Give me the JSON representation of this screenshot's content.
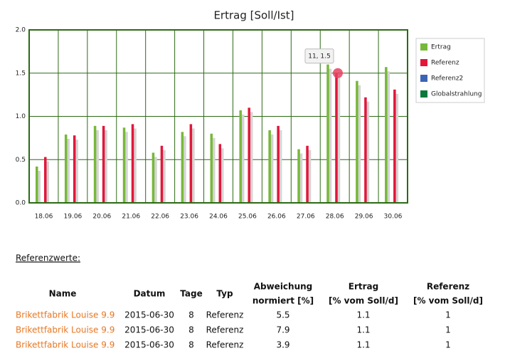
{
  "chart_data": {
    "type": "bar",
    "title": "Ertrag [Soll/Ist]",
    "categories": [
      "18.06",
      "19.06",
      "20.06",
      "21.06",
      "22.06",
      "23.06",
      "24.06",
      "25.06",
      "26.06",
      "27.06",
      "28.06",
      "29.06",
      "30.06"
    ],
    "series": [
      {
        "name": "Ertrag",
        "color": "#77b83a",
        "values": [
          0.42,
          0.79,
          0.89,
          0.87,
          0.58,
          0.82,
          0.8,
          1.07,
          0.84,
          0.62,
          1.6,
          1.41,
          1.57
        ]
      },
      {
        "name": "Referenz",
        "color": "#e3163a",
        "values": [
          0.53,
          0.78,
          0.89,
          0.91,
          0.66,
          0.91,
          0.68,
          1.1,
          0.89,
          0.66,
          1.5,
          1.22,
          1.31
        ]
      },
      {
        "name": "Referenz2",
        "color": "#3c64b4",
        "values": [
          null,
          null,
          null,
          null,
          null,
          null,
          null,
          null,
          null,
          null,
          null,
          null,
          null
        ]
      },
      {
        "name": "Globalstrahlung",
        "color": "#0a7a3c",
        "values": [
          null,
          null,
          null,
          null,
          null,
          null,
          null,
          null,
          null,
          null,
          null,
          null,
          null
        ]
      }
    ],
    "ylim": [
      0,
      2
    ],
    "yticks": [
      {
        "value": 0,
        "label": "0.0"
      },
      {
        "value": 0.5,
        "label": "0.5"
      },
      {
        "value": 1,
        "label": "1.0"
      },
      {
        "value": 1.5,
        "label": "1.5"
      },
      {
        "value": 2,
        "label": "2.0"
      }
    ],
    "grid": true,
    "annotation": "11, 1.5"
  },
  "table": {
    "heading": "Referenzwerte:",
    "columns": [
      [
        "Name"
      ],
      [
        "Datum"
      ],
      [
        "Tage"
      ],
      [
        "Typ"
      ],
      [
        "Abweichung",
        "normiert [%]"
      ],
      [
        "Ertrag",
        "[% vom Soll/d]"
      ],
      [
        "Referenz",
        "[% vom Soll/d]"
      ]
    ],
    "rows": [
      [
        "Brikettfabrik Louise 9.9",
        "2015-06-30",
        "8",
        "Referenz",
        "5.5",
        "1.1",
        "1"
      ],
      [
        "Brikettfabrik Louise 9.9",
        "2015-06-30",
        "8",
        "Referenz",
        "7.9",
        "1.1",
        "1"
      ],
      [
        "Brikettfabrik Louise 9.9",
        "2015-06-30",
        "8",
        "Referenz",
        "3.9",
        "1.1",
        "1"
      ]
    ]
  }
}
